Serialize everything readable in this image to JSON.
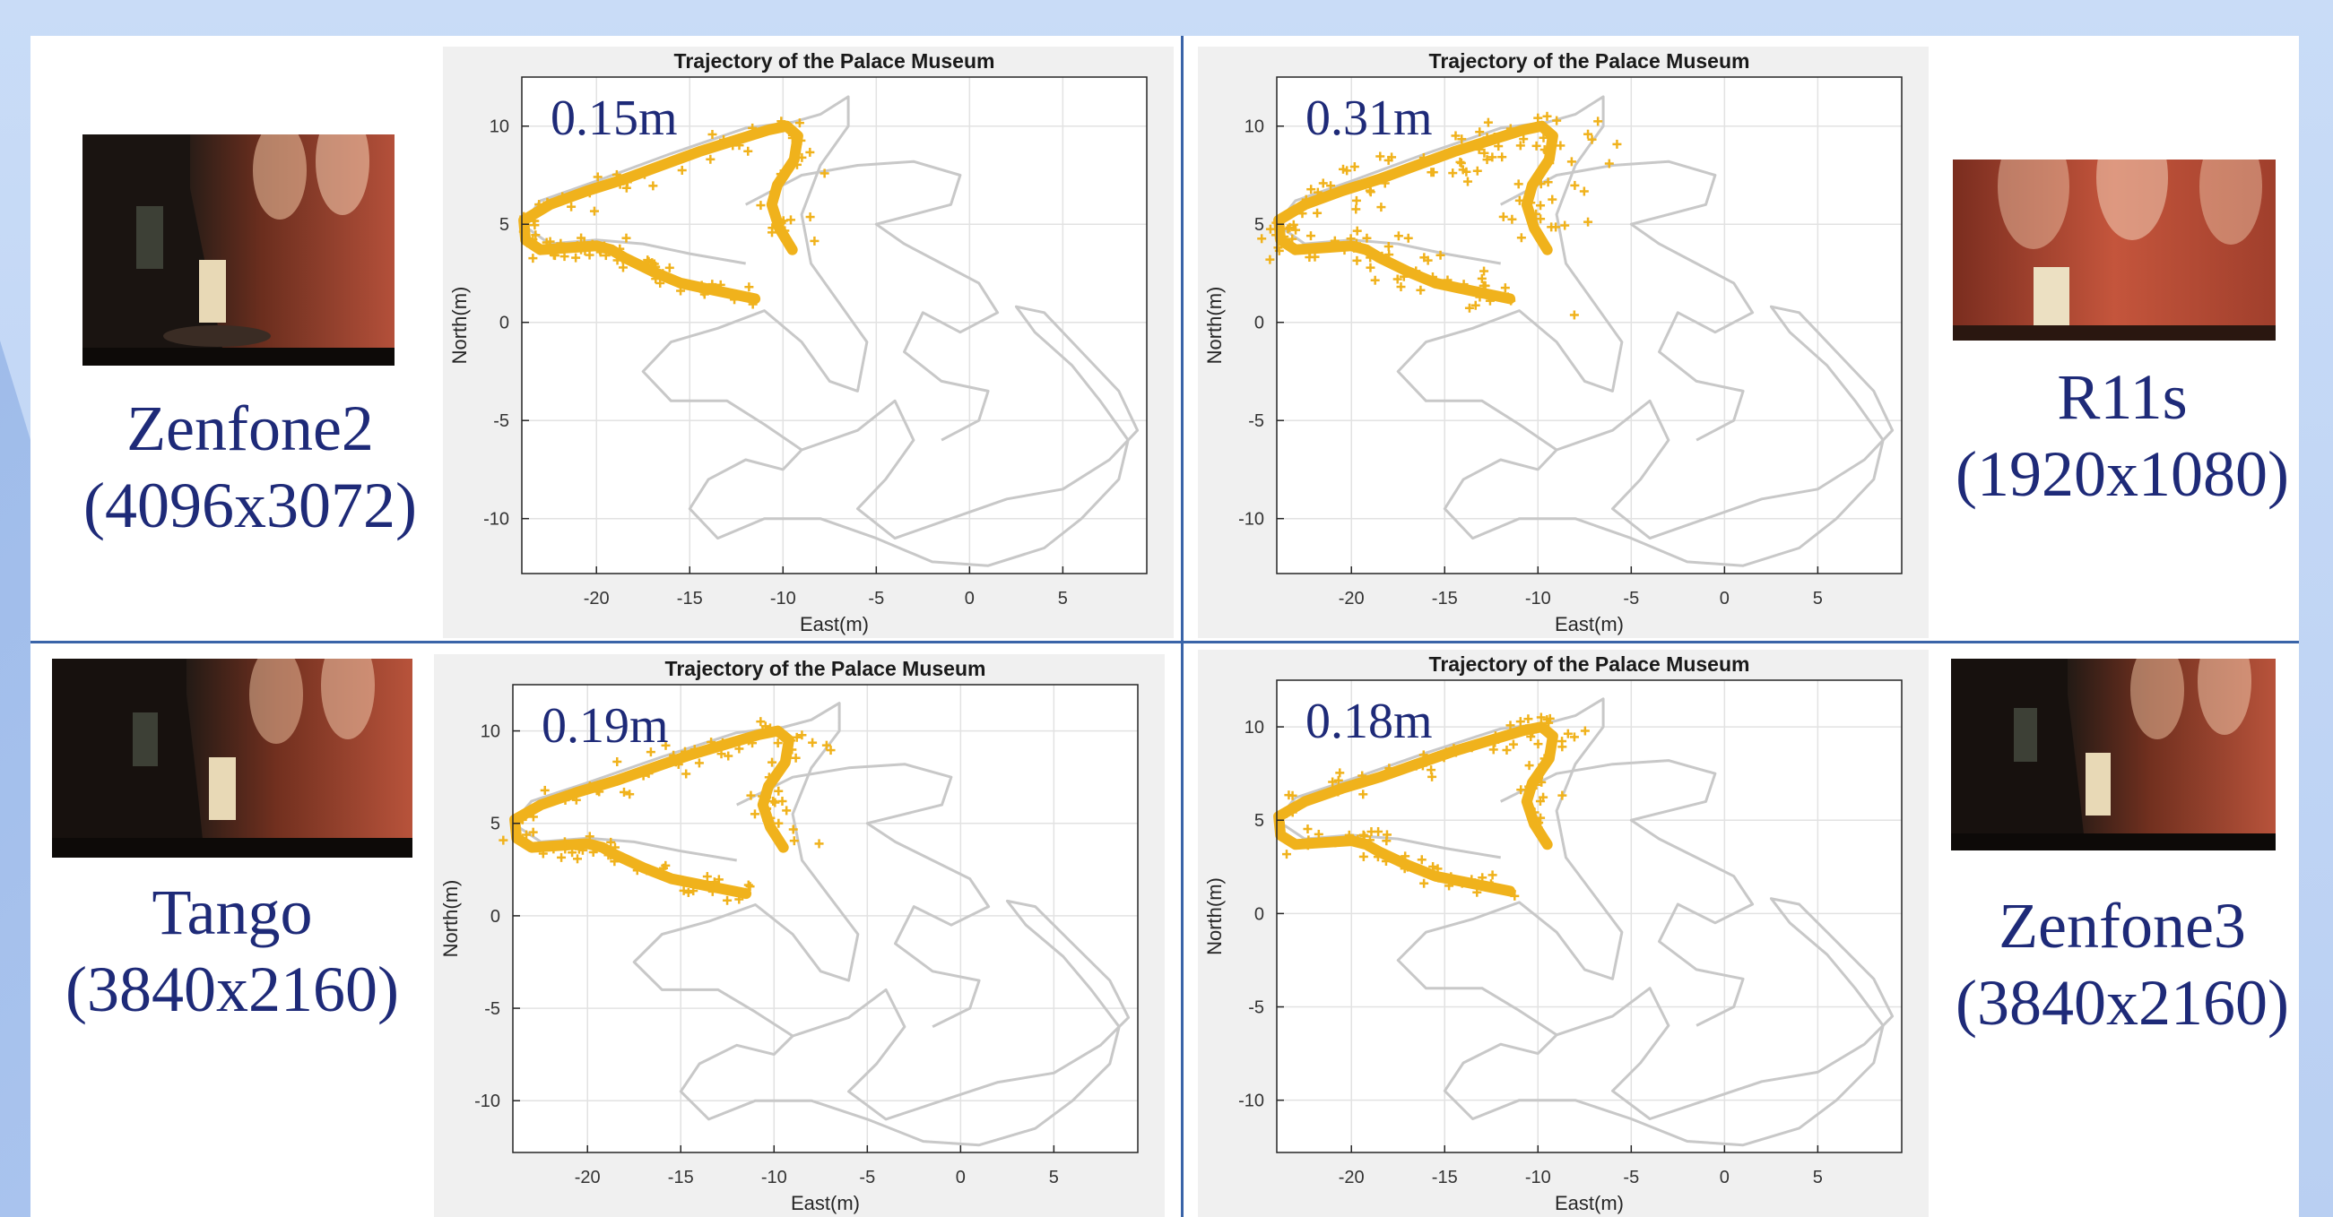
{
  "devices": [
    {
      "name": "Zenfone2",
      "resolution": "(4096x3072)",
      "error": "0.15m"
    },
    {
      "name": "R11s",
      "resolution": "(1920x1080)",
      "error": "0.31m"
    },
    {
      "name": "Tango",
      "resolution": "(3840x2160)",
      "error": "0.19m"
    },
    {
      "name": "Zenfone3",
      "resolution": "(3840x2160)",
      "error": "0.18m"
    }
  ],
  "colors": {
    "trajectory": "#c8c8c8",
    "estimates": "#f0b21c",
    "label": "#1e2a78",
    "divider": "#3a64a8",
    "plot_bg": "#f0f0f0"
  },
  "chart_data": [
    {
      "type": "scatter",
      "title": "Trajectory of the Palace Museum",
      "xlabel": "East(m)",
      "ylabel": "North(m)",
      "xlim": [
        -24,
        9.5
      ],
      "ylim": [
        -12.8,
        12.5
      ],
      "xticks": [
        -20,
        -15,
        -10,
        -5,
        0,
        5
      ],
      "yticks": [
        10,
        5,
        0,
        -5,
        -10
      ],
      "grid": true,
      "annotation": "0.15m",
      "spread": 0.15
    },
    {
      "type": "scatter",
      "title": "Trajectory of the Palace Museum",
      "xlabel": "East(m)",
      "ylabel": "North(m)",
      "xlim": [
        -24,
        9.5
      ],
      "ylim": [
        -12.8,
        12.5
      ],
      "xticks": [
        -20,
        -15,
        -10,
        -5,
        0,
        5
      ],
      "yticks": [
        10,
        5,
        0,
        -5,
        -10
      ],
      "grid": true,
      "annotation": "0.31m",
      "spread": 0.31
    },
    {
      "type": "scatter",
      "title": "Trajectory of the Palace Museum",
      "xlabel": "East(m)",
      "ylabel": "North(m)",
      "xlim": [
        -24,
        9.5
      ],
      "ylim": [
        -12.8,
        12.5
      ],
      "xticks": [
        -20,
        -15,
        -10,
        -5,
        0,
        5
      ],
      "yticks": [
        10,
        5,
        0,
        -5,
        -10
      ],
      "grid": true,
      "annotation": "0.19m",
      "spread": 0.19
    },
    {
      "type": "scatter",
      "title": "Trajectory of the Palace Museum",
      "xlabel": "East(m)",
      "ylabel": "North(m)",
      "xlim": [
        -24,
        9.5
      ],
      "ylim": [
        -12.8,
        12.5
      ],
      "xticks": [
        -20,
        -15,
        -10,
        -5,
        0,
        5
      ],
      "yticks": [
        10,
        5,
        0,
        -5,
        -10
      ],
      "grid": true,
      "annotation": "0.18m",
      "spread": 0.18
    }
  ]
}
